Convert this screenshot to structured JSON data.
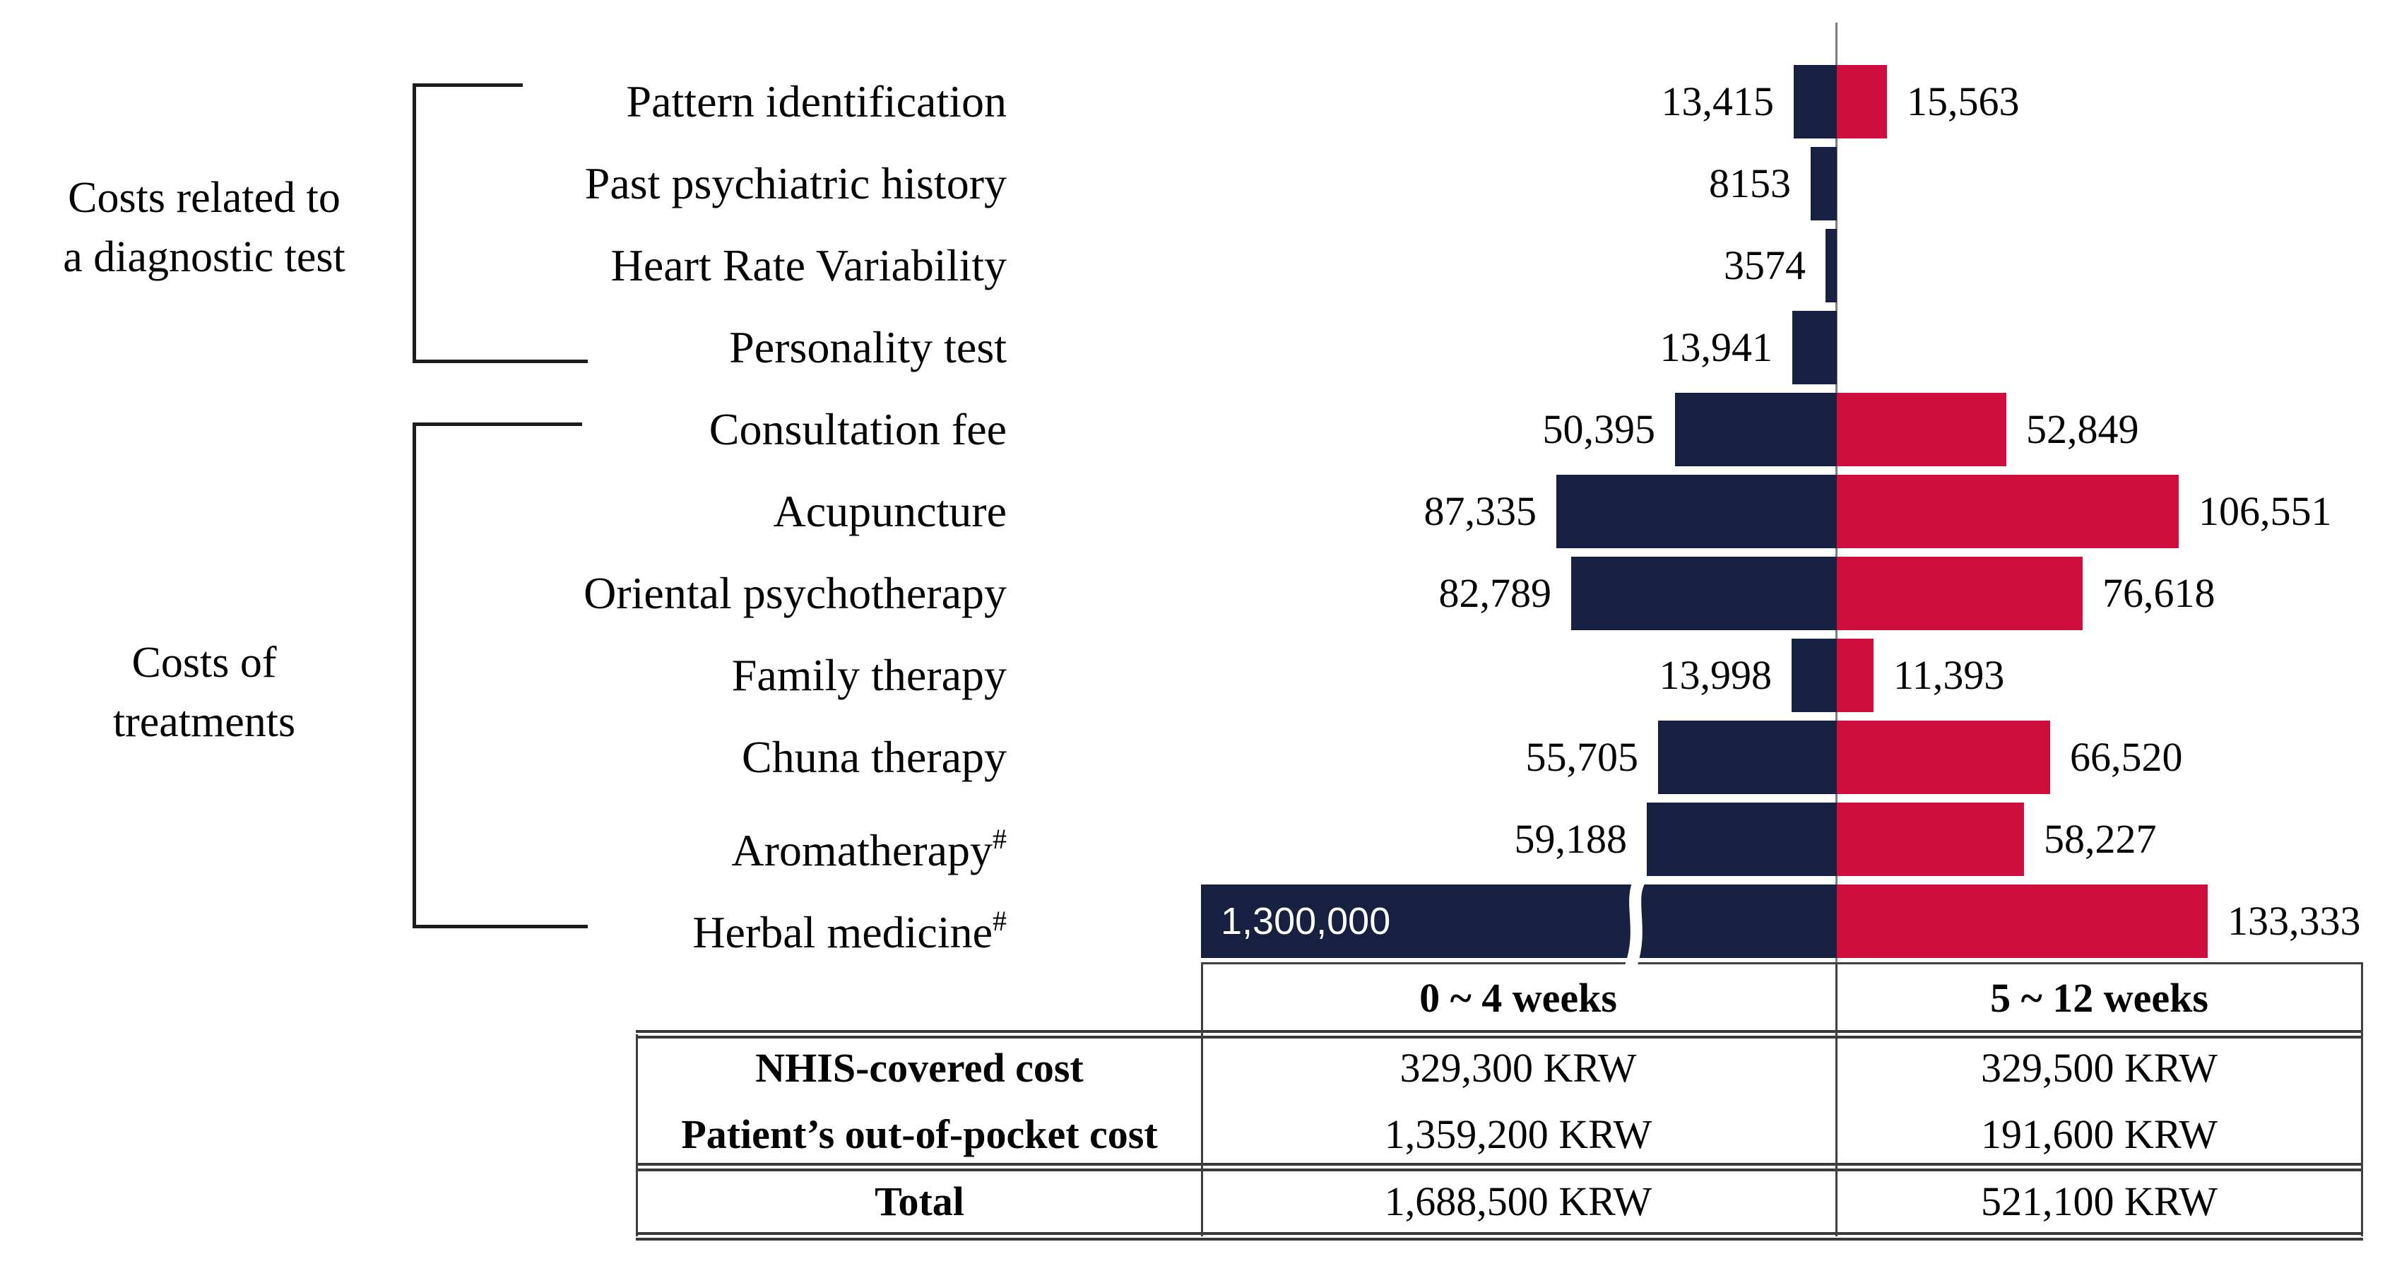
{
  "figure": {
    "groups": [
      {
        "line1": "Costs related to",
        "line2": "a diagnostic test"
      },
      {
        "line1": "Costs of",
        "line2": "treatments"
      }
    ]
  },
  "chart_data": {
    "type": "bar",
    "variant": "diverging_horizontal_tornado",
    "unit": "KRW",
    "legend_position": "none",
    "grid": false,
    "series": [
      {
        "name": "0 ~ 4 weeks",
        "side": "left",
        "color": "#172040"
      },
      {
        "name": "5 ~ 12 weeks",
        "side": "right",
        "color": "#CE0F3E"
      }
    ],
    "rows": [
      {
        "category": "Pattern identification",
        "sup": "",
        "group": "Costs related to a diagnostic test",
        "left": 13415,
        "left_label": "13,415",
        "right": 15563,
        "right_label": "15,563"
      },
      {
        "category": "Past psychiatric history",
        "sup": "",
        "group": "Costs related to a diagnostic test",
        "left": 8153,
        "left_label": "8153",
        "right": null,
        "right_label": ""
      },
      {
        "category": "Heart Rate Variability",
        "sup": "",
        "group": "Costs related to a diagnostic test",
        "left": 3574,
        "left_label": "3574",
        "right": null,
        "right_label": ""
      },
      {
        "category": "Personality test",
        "sup": "",
        "group": "Costs related to a diagnostic test",
        "left": 13941,
        "left_label": "13,941",
        "right": null,
        "right_label": ""
      },
      {
        "category": "Consultation fee",
        "sup": "",
        "group": "Costs of treatments",
        "left": 50395,
        "left_label": "50,395",
        "right": 52849,
        "right_label": "52,849"
      },
      {
        "category": "Acupuncture",
        "sup": "",
        "group": "Costs of treatments",
        "left": 87335,
        "left_label": "87,335",
        "right": 106551,
        "right_label": "106,551"
      },
      {
        "category": "Oriental psychotherapy",
        "sup": "",
        "group": "Costs of treatments",
        "left": 82789,
        "left_label": "82,789",
        "right": 76618,
        "right_label": "76,618"
      },
      {
        "category": "Family therapy",
        "sup": "",
        "group": "Costs of treatments",
        "left": 13998,
        "left_label": "13,998",
        "right": 11393,
        "right_label": "11,393"
      },
      {
        "category": "Chuna therapy",
        "sup": "",
        "group": "Costs of treatments",
        "left": 55705,
        "left_label": "55,705",
        "right": 66520,
        "right_label": "66,520"
      },
      {
        "category": "Aromatherapy",
        "sup": "#",
        "group": "Costs of treatments",
        "left": 59188,
        "left_label": "59,188",
        "right": 58227,
        "right_label": "58,227"
      },
      {
        "category": "Herbal medicine",
        "sup": "#",
        "group": "Costs of treatments",
        "left": 1300000,
        "left_label": "1,300,000",
        "right": 133333,
        "right_label": "133,333",
        "axis_break_on_left": true,
        "left_bar_not_to_scale": true,
        "left_label_inside_bar": true
      }
    ],
    "axis_break_note": "left Herbal medicine bar is truncated with a white break mark"
  },
  "table": {
    "col_headers": [
      "0 ~ 4 weeks",
      "5 ~ 12 weeks"
    ],
    "rows": [
      {
        "label": "NHIS-covered cost",
        "w0_4": "329,300 KRW",
        "w5_12": "329,500 KRW"
      },
      {
        "label": "Patient’s out-of-pocket cost",
        "w0_4": "1,359,200 KRW",
        "w5_12": "191,600 KRW"
      },
      {
        "label": "Total",
        "w0_4": "1,688,500 KRW",
        "w5_12": "521,100 KRW"
      }
    ]
  },
  "colors": {
    "navy": "#172040",
    "crimson": "#CE0F3E",
    "axis": "#7E7E7E",
    "line": "#3A3A3A",
    "bracket": "#1D1D1D"
  }
}
